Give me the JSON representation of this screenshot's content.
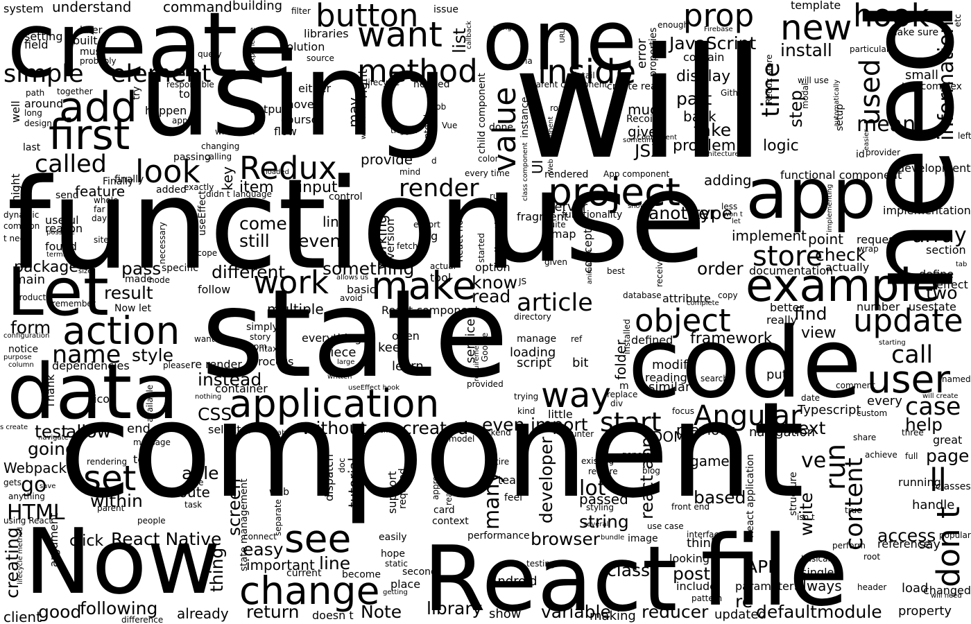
{
  "cloud": {
    "background": "#ffffff",
    "ink": "#000000",
    "words": [
      "component",
      "will",
      "state",
      "function",
      "use",
      "using",
      "create",
      "React",
      "file",
      "code",
      "need",
      "one",
      "data",
      "Now",
      "app",
      "Let",
      "example",
      "application",
      "project",
      "change",
      "make",
      "first",
      "add",
      "work",
      "want",
      "method",
      "action",
      "inside",
      "prop",
      "new",
      "update",
      "user",
      "hook",
      "button",
      "set",
      "see",
      "way",
      "Redux",
      "Angular",
      "object",
      "element",
      "simple",
      "called",
      "look",
      "time",
      "value",
      "store",
      "used",
      "start",
      "name",
      "article",
      "JavaScript",
      "install",
      "render",
      "mean",
      "information",
      "run",
      "content",
      "call",
      "case",
      "array",
      "React Native",
      "reducer",
      "string",
      "variable",
      "return",
      "following",
      "library",
      "Note",
      "defaultmodule",
      "class",
      "post",
      "test",
      "allow",
      "go",
      "HTML",
      "CSS",
      "within",
      "able",
      "route",
      "lot",
      "passed",
      "based",
      "ll",
      "page",
      "access",
      "don t",
      "write",
      "re",
      "always",
      "API",
      "browser",
      "developer",
      "many",
      "tutorial",
      "import",
      "even",
      "created",
      "without",
      "next",
      "instead",
      "style",
      "form",
      "result",
      "pass",
      "package",
      "main",
      "different",
      "something",
      "item",
      "input",
      "link",
      "event",
      "come",
      "still",
      "know",
      "read",
      "find",
      "view",
      "framework",
      "two",
      "check",
      "point",
      "order",
      "implement",
      "another",
      "type",
      "adding",
      "JSX",
      "problem",
      "take",
      "logic",
      "step",
      "display",
      "part",
      "back",
      "give",
      "much",
      "help",
      "previous",
      "navigation",
      "DOM",
      "game",
      "screen",
      "thing",
      "easy",
      "important",
      "line",
      "click",
      "going",
      "Webpack",
      "good",
      "creating",
      "already",
      "client",
      "doesn t",
      "Android",
      "show",
      "making",
      "updated",
      "property",
      "changed",
      "load",
      "parameter",
      "single",
      "include",
      "think",
      "looking",
      "reference",
      "say",
      "handle",
      "running",
      "classes",
      "great",
      "full",
      "three",
      "share",
      "custom",
      "Typescript",
      "every",
      "date",
      "comment",
      "search",
      "similar",
      "reading",
      "modify",
      "put",
      "defined",
      "folder",
      "bit",
      "loading",
      "script",
      "service",
      "learn",
      "keep",
      "piece",
      "open",
      "everything",
      "process",
      "re render",
      "dependencies",
      "Thank",
      "icon",
      "container",
      "selector",
      "end",
      "small",
      "development",
      "implementation",
      "section",
      "request",
      "actually",
      "documentation",
      "effect",
      "define",
      "number",
      "usestate",
      "better",
      "really",
      "attribute",
      "concept",
      "map",
      "fragment",
      "functionality",
      "server",
      "UI",
      "version",
      "working",
      "tag",
      "provide",
      "directly",
      "React hook",
      "option",
      "tool",
      "basic",
      "multiple",
      "React component",
      "simply",
      "follow",
      "Now let",
      "remember",
      "product",
      "useful",
      "reason",
      "found",
      "might",
      "well",
      "around",
      "setting",
      "field",
      "later",
      "built",
      "must",
      "system",
      "understand",
      "command",
      "building",
      "libraries",
      "solution",
      "list",
      "right",
      "may",
      "key",
      "feature",
      "error",
      "properties",
      "contain",
      "template",
      "make sure",
      "textcomplex",
      "setup",
      "modal",
      "Firebase",
      "URL",
      "issue",
      "along",
      "callback",
      "filter",
      "query",
      "experience",
      "source",
      "probably",
      "lifecycle",
      "needed",
      "either",
      "output",
      "move",
      "course",
      "flow",
      "happen",
      "try",
      "top",
      "together",
      "path",
      "long",
      "design",
      "last",
      "apply",
      "whenever",
      "calling",
      "passing",
      "finally",
      "added",
      "send",
      "dynamic",
      "common",
      "t need",
      "site",
      "terminal",
      "possible",
      "scope",
      "necessary",
      "specific",
      "size",
      "made",
      "node",
      "allows us",
      "avoid",
      "idea",
      "npm",
      "story",
      "syntax",
      "wanted",
      "notice",
      "configuration",
      "purpose",
      "column",
      "please",
      "written",
      "useEffect hook",
      "large",
      "nothing",
      "available",
      "message",
      "navigate",
      "Babel",
      "s create",
      "remove",
      "model",
      "backend",
      "counter",
      "rendering",
      "tell",
      "title",
      "task",
      "gets",
      "save",
      "anything",
      "using React",
      "parent",
      "people",
      "argument",
      "lifecycle method",
      "difference",
      "getting",
      "place",
      "second",
      "current",
      "become",
      "static",
      "hope",
      "easily",
      "performance",
      "context",
      "card",
      "ready",
      "approach",
      "doc",
      "dispatch",
      "web",
      "separate",
      "state management",
      "required",
      "support",
      "entire",
      "feel",
      "team",
      "existing",
      "require",
      "blog",
      "styling",
      "several",
      "bundle",
      "image",
      "front end",
      "interface",
      "connect",
      "use case",
      "generate",
      "testing",
      "basically",
      "perform",
      "pattern",
      "root",
      "header",
      "popular",
      "true",
      "isn t",
      "structure",
      "React application",
      "trigger",
      "Vue",
      "will look",
      "frontend",
      "job",
      "done",
      "instance",
      "row",
      "child component",
      "color",
      "provided",
      "every time",
      "mind",
      "fetch",
      "export",
      "started",
      "actual",
      "given",
      "animation",
      "shown",
      "best",
      "receive",
      "database",
      "directory",
      "ref",
      "manage",
      "Google",
      "requirement",
      "installed",
      "copy",
      "complete",
      "starting",
      "will create",
      "named",
      "little",
      "kind",
      "trying",
      "replace",
      "div",
      "focus",
      "achieve",
      "wrap",
      "tab",
      "left",
      "easier",
      "id",
      "provider",
      "automatically",
      "implementing",
      "rule",
      "less",
      "won t",
      "let",
      "quite",
      "rendered",
      "App component",
      "Recoil",
      "Component",
      "architecture",
      "sometime",
      "loaded",
      "Web Component",
      "class component",
      "didn t",
      "language",
      "far",
      "exactly",
      "whole",
      "day",
      "useEffect",
      "control",
      "Finally",
      "functional component",
      "parent component",
      "detail",
      "via",
      "enough",
      "Github",
      "Redux store",
      "will use",
      "particular",
      "etc",
      "responsible",
      "changing",
      "create react",
      "m",
      "JS",
      "u",
      "react app",
      "d",
      "ve",
      "will need"
    ]
  }
}
